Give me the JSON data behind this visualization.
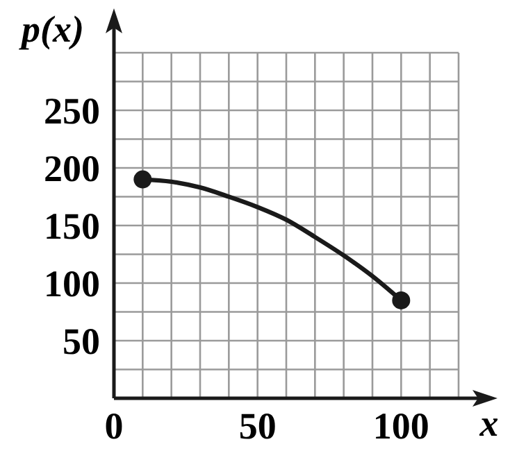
{
  "chart_data": {
    "type": "line",
    "xlabel": "x",
    "ylabel": "p(x)",
    "xlim": [
      0,
      120
    ],
    "ylim": [
      0,
      300
    ],
    "xticks": [
      0,
      {
        "value": 10,
        "label": null
      },
      {
        "value": 20,
        "label": null
      },
      {
        "value": 30,
        "label": null
      },
      {
        "value": 40,
        "label": null
      },
      50,
      {
        "value": 60,
        "label": null
      },
      {
        "value": 70,
        "label": null
      },
      {
        "value": 80,
        "label": null
      },
      {
        "value": 90,
        "label": null
      },
      100,
      {
        "value": 110,
        "label": null
      },
      {
        "value": 120,
        "label": null
      }
    ],
    "yticks": [
      {
        "value": 0,
        "label": null
      },
      {
        "value": 25,
        "label": null
      },
      50,
      {
        "value": 75,
        "label": null
      },
      100,
      {
        "value": 125,
        "label": null
      },
      150,
      {
        "value": 175,
        "label": null
      },
      200,
      {
        "value": 225,
        "label": null
      },
      250,
      {
        "value": 275,
        "label": null
      },
      {
        "value": 300,
        "label": null
      }
    ],
    "grid": true,
    "series": [
      {
        "color": "#1a1a1a",
        "marker": "none",
        "x": [
          10,
          20,
          30,
          40,
          50,
          60,
          70,
          80,
          90,
          100
        ],
        "values": [
          190,
          188,
          183,
          175,
          166,
          155,
          140,
          124,
          106,
          85
        ]
      },
      {
        "type": "scatter",
        "color": "#1a1a1a",
        "marker": "circle",
        "x": [
          10,
          100
        ],
        "values": [
          190,
          85
        ]
      }
    ]
  }
}
